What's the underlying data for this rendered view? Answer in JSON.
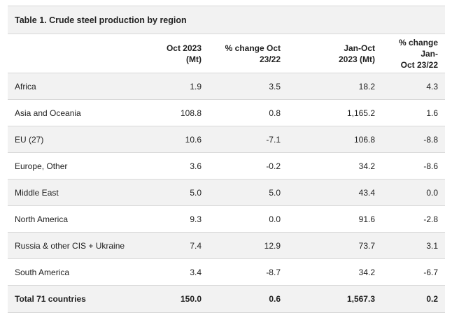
{
  "table": {
    "caption": "Table 1. Crude steel production by region",
    "headers": [
      {
        "line1": "",
        "line2": ""
      },
      {
        "line1": "Oct 2023",
        "line2": "(Mt)"
      },
      {
        "line1": "% change Oct",
        "line2": "23/22"
      },
      {
        "line1": "Jan-Oct",
        "line2": "2023 (Mt)"
      },
      {
        "line1": "% change Jan-",
        "line2": "Oct 23/22"
      }
    ],
    "rows": [
      [
        "Africa",
        "1.9",
        "3.5",
        "18.2",
        "4.3"
      ],
      [
        "Asia and Oceania",
        "108.8",
        "0.8",
        "1,165.2",
        "1.6"
      ],
      [
        "EU (27)",
        "10.6",
        "-7.1",
        "106.8",
        "-8.8"
      ],
      [
        "Europe, Other",
        "3.6",
        "-0.2",
        "34.2",
        "-8.6"
      ],
      [
        "Middle East",
        "5.0",
        "5.0",
        "43.4",
        "0.0"
      ],
      [
        "North America",
        "9.3",
        "0.0",
        "91.6",
        "-2.8"
      ],
      [
        "Russia & other CIS + Ukraine",
        "7.4",
        "12.9",
        "73.7",
        "3.1"
      ],
      [
        "South America",
        "3.4",
        "-8.7",
        "34.2",
        "-6.7"
      ]
    ],
    "total": [
      "Total 71 countries",
      "150.0",
      "0.6",
      "1,567.3",
      "0.2"
    ]
  }
}
